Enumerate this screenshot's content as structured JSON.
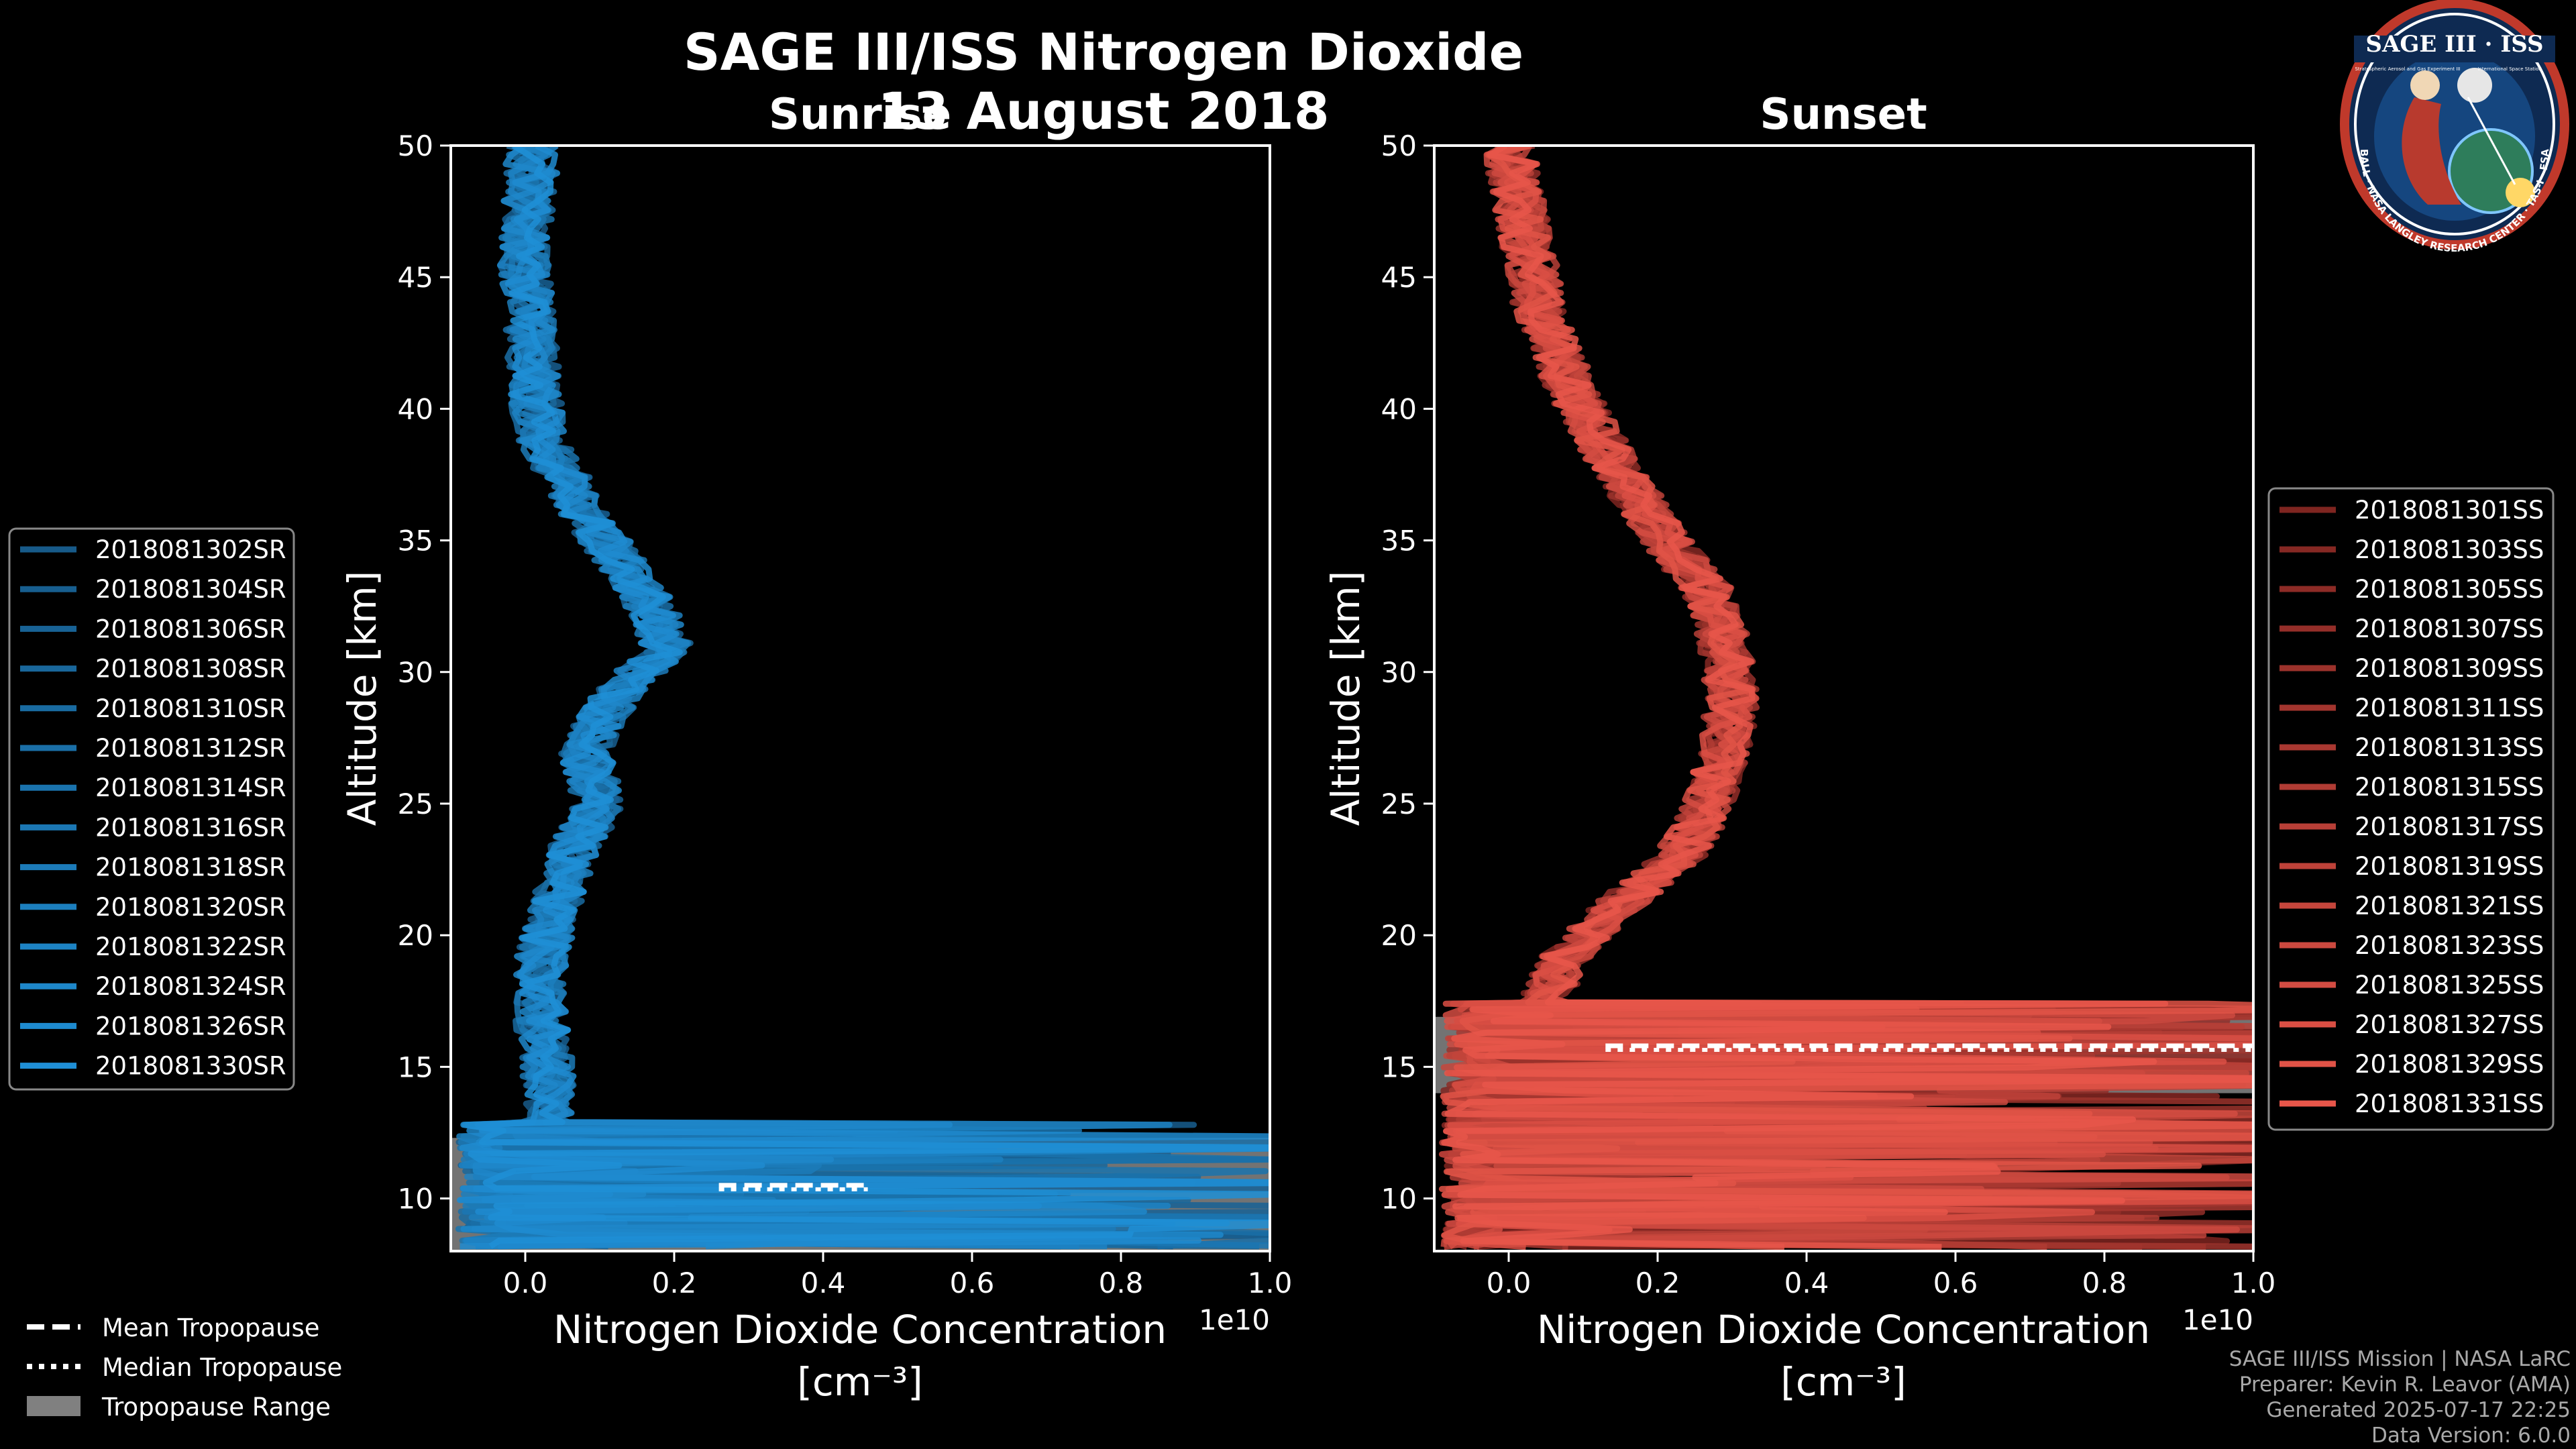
{
  "figure": {
    "title": "SAGE III/ISS Nitrogen Dioxide",
    "date": "13 August 2018",
    "footer": [
      "SAGE III/ISS Mission | NASA LaRC",
      "Preparer: Kevin R. Leavor (AMA)",
      "Generated 2025-07-17 22:25",
      "Data Version: 6.0.0"
    ],
    "badge": {
      "title": "SAGE III · ISS",
      "ring": "BALL · NASA LANGLEY RESEARCH CENTER · TAS-I · ESA",
      "sub_left": "Stratospheric Aerosol and Gas Experiment III",
      "sub_right": "International Space Station"
    },
    "tropopause_legend": {
      "mean": "Mean Tropopause",
      "median": "Median Tropopause",
      "range": "Tropopause Range"
    },
    "colors": {
      "sunrise": "#1f8fd6",
      "sunset": "#e8564a",
      "range": "#808080",
      "frame": "#ffffff",
      "background": "#000000"
    }
  },
  "chart_data": [
    {
      "type": "line",
      "title": "Sunrise",
      "xlabel": "Nitrogen Dioxide Concentration",
      "xunit": "[cm⁻³]",
      "x_exponent": "1e10",
      "ylabel": "Altitude [km]",
      "xlim": [
        -0.1,
        1.0
      ],
      "ylim": [
        8,
        50
      ],
      "xticks": [
        "0.0",
        "0.2",
        "0.4",
        "0.6",
        "0.8",
        "1.0"
      ],
      "yticks": [
        "10",
        "15",
        "20",
        "25",
        "30",
        "35",
        "40",
        "45",
        "50"
      ],
      "legend_position": "outside-left",
      "tropopause": {
        "mean": 10.5,
        "median": 10.5,
        "range": [
          8.0,
          12.3
        ]
      },
      "mean_profile": [
        [
          50,
          0.01
        ],
        [
          45,
          0.0
        ],
        [
          42,
          0.01
        ],
        [
          39,
          0.02
        ],
        [
          36,
          0.08
        ],
        [
          33,
          0.16
        ],
        [
          31,
          0.19
        ],
        [
          29,
          0.12
        ],
        [
          27,
          0.08
        ],
        [
          25,
          0.1
        ],
        [
          23,
          0.06
        ],
        [
          21,
          0.04
        ],
        [
          19,
          0.02
        ],
        [
          17,
          0.02
        ],
        [
          15,
          0.03
        ]
      ],
      "series": [
        {
          "name": "2018081302SR"
        },
        {
          "name": "2018081304SR"
        },
        {
          "name": "2018081306SR"
        },
        {
          "name": "2018081308SR"
        },
        {
          "name": "2018081310SR"
        },
        {
          "name": "2018081312SR"
        },
        {
          "name": "2018081314SR"
        },
        {
          "name": "2018081316SR"
        },
        {
          "name": "2018081318SR"
        },
        {
          "name": "2018081320SR"
        },
        {
          "name": "2018081322SR"
        },
        {
          "name": "2018081324SR"
        },
        {
          "name": "2018081326SR"
        },
        {
          "name": "2018081330SR"
        }
      ]
    },
    {
      "type": "line",
      "title": "Sunset",
      "xlabel": "Nitrogen Dioxide Concentration",
      "xunit": "[cm⁻³]",
      "x_exponent": "1e10",
      "ylabel": "Altitude [km]",
      "xlim": [
        -0.1,
        1.0
      ],
      "ylim": [
        8,
        50
      ],
      "xticks": [
        "0.0",
        "0.2",
        "0.4",
        "0.6",
        "0.8",
        "1.0"
      ],
      "yticks": [
        "10",
        "15",
        "20",
        "25",
        "30",
        "35",
        "40",
        "45",
        "50"
      ],
      "legend_position": "outside-right",
      "tropopause": {
        "mean": 15.8,
        "median": 15.8,
        "range": [
          14.0,
          16.9
        ]
      },
      "mean_profile": [
        [
          50,
          0.0
        ],
        [
          47,
          0.02
        ],
        [
          44,
          0.04
        ],
        [
          41,
          0.08
        ],
        [
          38,
          0.14
        ],
        [
          35,
          0.21
        ],
        [
          33,
          0.27
        ],
        [
          31,
          0.29
        ],
        [
          29,
          0.3
        ],
        [
          27,
          0.29
        ],
        [
          25,
          0.27
        ],
        [
          23,
          0.23
        ],
        [
          21,
          0.14
        ],
        [
          19,
          0.07
        ],
        [
          17.5,
          0.05
        ],
        [
          16,
          0.1
        ]
      ],
      "series": [
        {
          "name": "2018081301SS"
        },
        {
          "name": "2018081303SS"
        },
        {
          "name": "2018081305SS"
        },
        {
          "name": "2018081307SS"
        },
        {
          "name": "2018081309SS"
        },
        {
          "name": "2018081311SS"
        },
        {
          "name": "2018081313SS"
        },
        {
          "name": "2018081315SS"
        },
        {
          "name": "2018081317SS"
        },
        {
          "name": "2018081319SS"
        },
        {
          "name": "2018081321SS"
        },
        {
          "name": "2018081323SS"
        },
        {
          "name": "2018081325SS"
        },
        {
          "name": "2018081327SS"
        },
        {
          "name": "2018081329SS"
        },
        {
          "name": "2018081331SS"
        }
      ]
    }
  ]
}
